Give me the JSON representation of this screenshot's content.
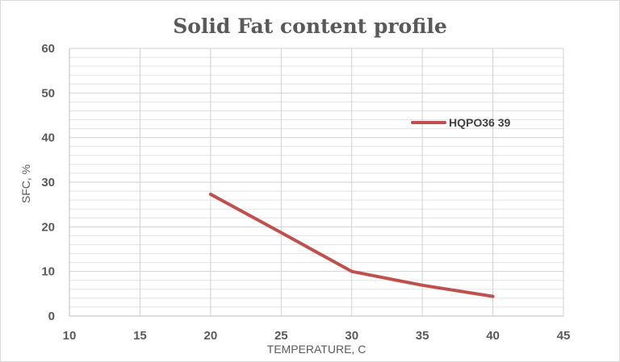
{
  "chart_data": {
    "type": "line",
    "title": "Solid Fat content profile",
    "xlabel": "TEMPERATURE, C",
    "ylabel": "SFC, %",
    "xlim": [
      10,
      45
    ],
    "ylim": [
      0,
      60
    ],
    "x_ticks": [
      10,
      15,
      20,
      25,
      30,
      35,
      40,
      45
    ],
    "y_ticks": [
      0,
      10,
      20,
      30,
      40,
      50,
      60
    ],
    "grid": true,
    "legend_position": "right",
    "series": [
      {
        "name": "HQPO36 39",
        "color": "#c0504d",
        "x": [
          20,
          25,
          30,
          35,
          40
        ],
        "y": [
          27.3,
          18.7,
          10.0,
          6.9,
          4.4
        ]
      }
    ]
  }
}
